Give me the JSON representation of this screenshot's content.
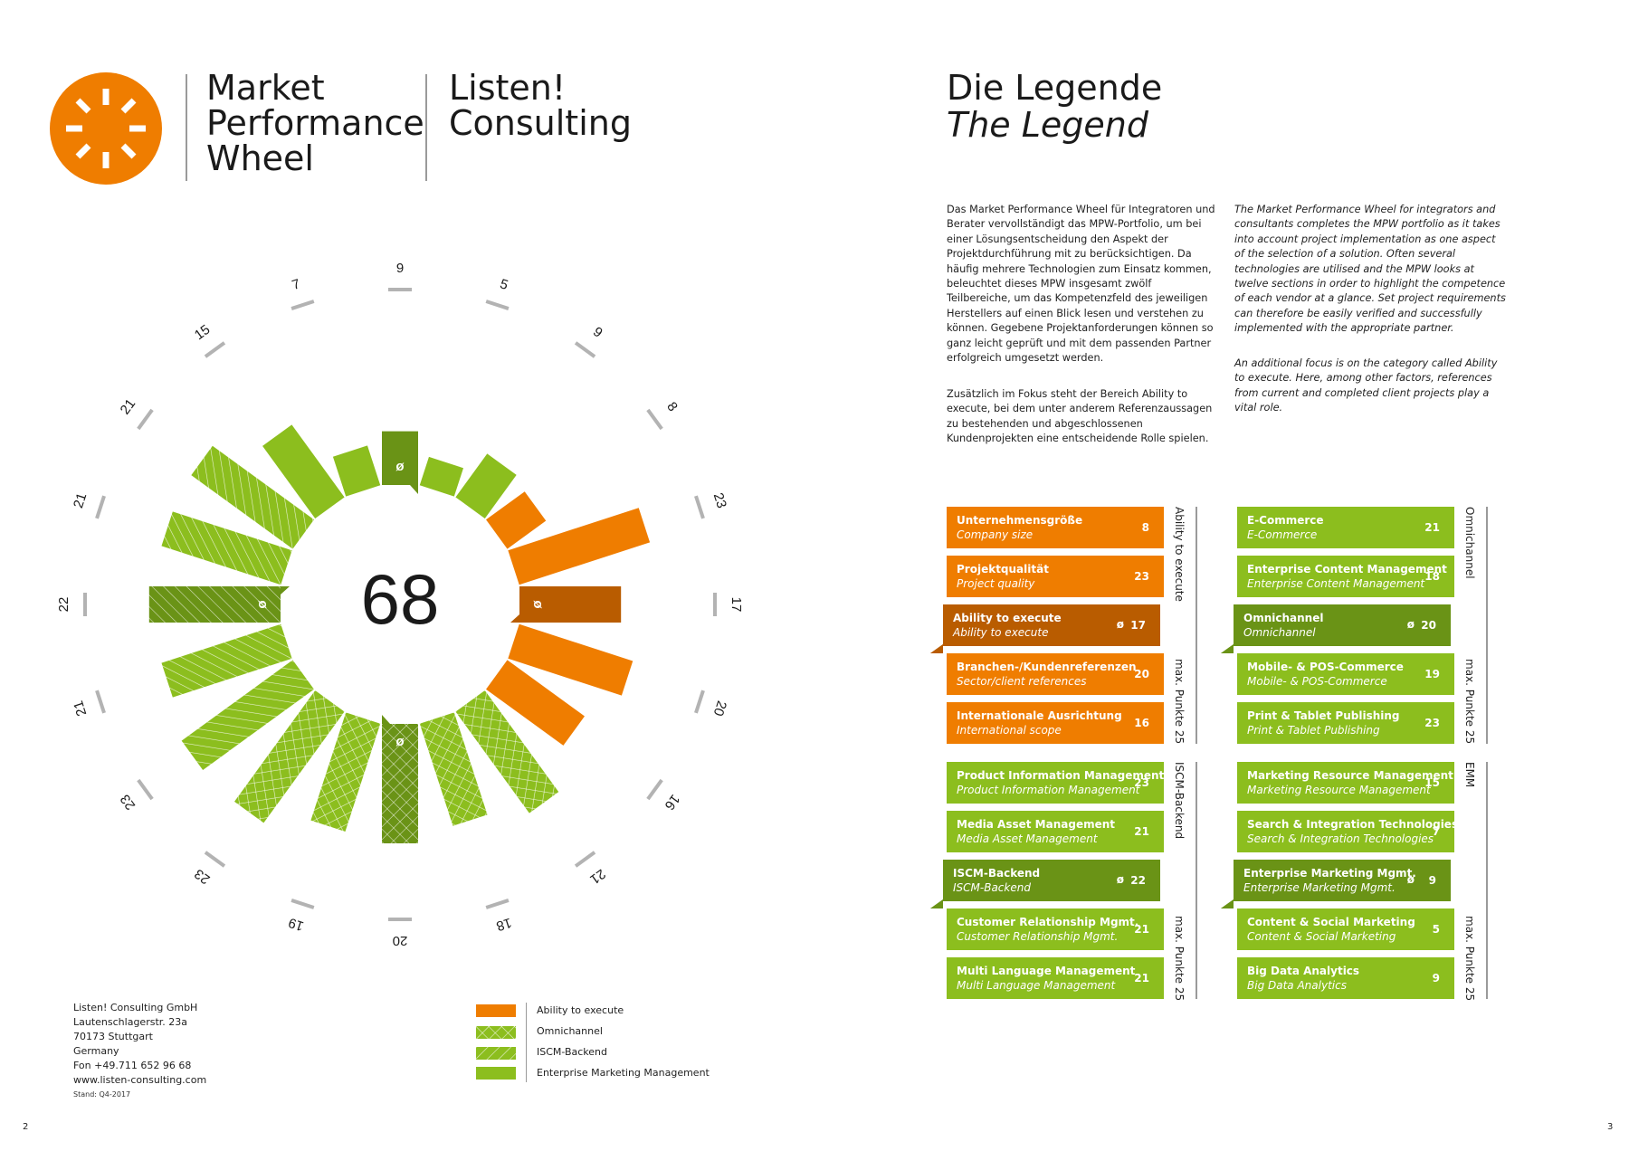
{
  "header": {
    "wheel_title_lines": [
      "Market",
      "Performance",
      "Wheel"
    ],
    "company_lines": [
      "Listen!",
      "Consulting"
    ],
    "legend_title": "Die Legende",
    "legend_title_en": "The Legend"
  },
  "colors": {
    "orange": "#ef7d00",
    "dark_orange": "#b95c00",
    "green": "#8cbe1e",
    "dark_green": "#6a9316",
    "grey": "#b3b3b3"
  },
  "intro": {
    "de_1": "Das Market Performance Wheel für Integratoren und Berater vervollständigt das MPW-Portfolio, um bei einer Lösungsentscheidung den Aspekt der Projektdurchführung mit zu berücksichtigen. Da häufig mehrere Technologien zum Einsatz kommen, beleuchtet dieses MPW insgesamt zwölf Teilbereiche, um das Kompetenzfeld des jeweiligen Herstellers auf einen Blick lesen und verstehen zu können. Gegebene Projektanforderungen können so ganz leicht geprüft und mit dem passenden Partner erfolgreich umgesetzt werden.",
    "de_2": "Zusätzlich im Fokus steht der Bereich Ability to execute, bei dem unter anderem Referenzaussagen zu bestehenden und abgeschlossenen Kundenprojekten eine entscheidende Rolle spielen.",
    "en_1": "The Market Performance Wheel for integrators and consultants completes the MPW portfolio as it takes into account project implementation as one aspect of the selection of a solution. Often several technologies are utilised and the MPW looks at twelve sections in order to highlight the competence of each vendor at a glance. Set project requirements can therefore be easily verified and successfully implemented with the appropriate partner.",
    "en_2": "An additional focus is on the category called Ability to execute. Here, among other factors, references from current and completed client projects play a vital role."
  },
  "chart_data": {
    "type": "radial-bar",
    "title": "Market Performance Wheel",
    "center_value": "68",
    "max_value": 25,
    "series": [
      {
        "name": "Ability to execute",
        "color": "orange"
      },
      {
        "name": "Omnichannel",
        "color": "green-crosshatch"
      },
      {
        "name": "ISCM-Backend",
        "color": "green-hatch"
      },
      {
        "name": "Enterprise Marketing Management",
        "color": "green"
      }
    ],
    "bars": [
      {
        "value": 9,
        "group": "Enterprise Marketing Management",
        "avg": true
      },
      {
        "value": 5,
        "group": "Enterprise Marketing Management"
      },
      {
        "value": 9,
        "group": "Enterprise Marketing Management"
      },
      {
        "value": 8,
        "group": "Ability to execute"
      },
      {
        "value": 23,
        "group": "Ability to execute"
      },
      {
        "value": 17,
        "group": "Ability to execute",
        "avg": true
      },
      {
        "value": 20,
        "group": "Ability to execute"
      },
      {
        "value": 16,
        "group": "Ability to execute"
      },
      {
        "value": 21,
        "group": "Omnichannel"
      },
      {
        "value": 18,
        "group": "Omnichannel"
      },
      {
        "value": 20,
        "group": "Omnichannel",
        "avg": true
      },
      {
        "value": 19,
        "group": "Omnichannel"
      },
      {
        "value": 23,
        "group": "Omnichannel"
      },
      {
        "value": 23,
        "group": "ISCM-Backend"
      },
      {
        "value": 21,
        "group": "ISCM-Backend"
      },
      {
        "value": 22,
        "group": "ISCM-Backend",
        "avg": true
      },
      {
        "value": 21,
        "group": "ISCM-Backend"
      },
      {
        "value": 21,
        "group": "ISCM-Backend"
      },
      {
        "value": 15,
        "group": "Enterprise Marketing Management"
      },
      {
        "value": 7,
        "group": "Enterprise Marketing Management"
      }
    ],
    "avg_symbol": "ø",
    "legend_placement": "bottom"
  },
  "cards": {
    "ate": {
      "side_label": "Ability to execute",
      "side_label_max": "max. Punkte 25",
      "items": [
        {
          "de": "Unternehmensgröße",
          "en": "Company size",
          "value": "8"
        },
        {
          "de": "Projektqualität",
          "en": "Project quality",
          "value": "23"
        },
        {
          "de": "Ability to execute",
          "en": "Ability to execute",
          "value": "17",
          "avg": true
        },
        {
          "de": "Branchen-/Kundenreferenzen",
          "en": "Sector/client references",
          "value": "20"
        },
        {
          "de": "Internationale Ausrichtung",
          "en": "International scope",
          "value": "16"
        }
      ]
    },
    "omni": {
      "side_label": "Omnichannel",
      "side_label_max": "max. Punkte 25",
      "items": [
        {
          "de": "E-Commerce",
          "en": "E-Commerce",
          "value": "21"
        },
        {
          "de": "Enterprise Content Management",
          "en": "Enterprise Content Management",
          "value": "18"
        },
        {
          "de": "Omnichannel",
          "en": "Omnichannel",
          "value": "20",
          "avg": true
        },
        {
          "de": "Mobile- & POS-Commerce",
          "en": "Mobile- & POS-Commerce",
          "value": "19"
        },
        {
          "de": "Print & Tablet Publishing",
          "en": "Print & Tablet Publishing",
          "value": "23"
        }
      ]
    },
    "iscm": {
      "side_label": "ISCM-Backend",
      "side_label_max": "max. Punkte 25",
      "items": [
        {
          "de": "Product Information Management",
          "en": "Product Information Management",
          "value": "23"
        },
        {
          "de": "Media Asset Management",
          "en": "Media Asset Management",
          "value": "21"
        },
        {
          "de": "ISCM-Backend",
          "en": "ISCM-Backend",
          "value": "22",
          "avg": true
        },
        {
          "de": "Customer Relationship Mgmt.",
          "en": "Customer Relationship Mgmt.",
          "value": "21"
        },
        {
          "de": "Multi Language Management",
          "en": "Multi Language Management",
          "value": "21"
        }
      ]
    },
    "emm": {
      "side_label": "EMM",
      "side_label_max": "max. Punkte 25",
      "items": [
        {
          "de": "Marketing Resource Management",
          "en": "Marketing Resource Management",
          "value": "15"
        },
        {
          "de": "Search & Integration Technologies",
          "en": "Search & Integration Technologies",
          "value": "7"
        },
        {
          "de": "Enterprise Marketing Mgmt.",
          "en": "Enterprise Marketing Mgmt.",
          "value": "9",
          "avg": true
        },
        {
          "de": "Content & Social Marketing",
          "en": "Content & Social Marketing",
          "value": "5"
        },
        {
          "de": "Big Data Analytics",
          "en": "Big Data Analytics",
          "value": "9"
        }
      ]
    }
  },
  "legend": [
    {
      "label": "Ability to execute"
    },
    {
      "label": "Omnichannel"
    },
    {
      "label": "ISCM-Backend"
    },
    {
      "label": "Enterprise Marketing Management"
    }
  ],
  "footer": {
    "address_lines": [
      "Listen! Consulting GmbH",
      "Lautenschlagerstr. 23a",
      "70173 Stuttgart",
      "Germany",
      "Fon +49.711 652 96 68",
      "www.listen-consulting.com"
    ],
    "stand": "Stand: Q4-2017",
    "page_left": "2",
    "page_right": "3"
  }
}
